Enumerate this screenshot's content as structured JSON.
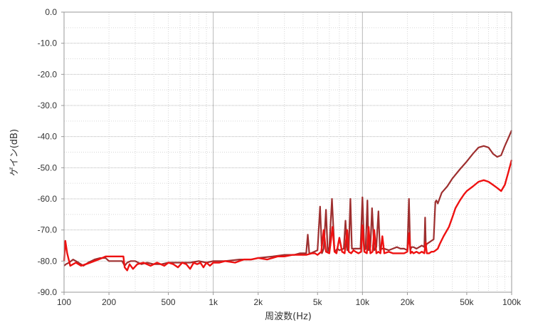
{
  "colors": {
    "series_dark": "#9e2f2f",
    "series_bright": "#ee1111",
    "grid_major": "#b8b8b8",
    "grid_minor": "#d6d6d6",
    "axis": "#999999",
    "text": "#333333"
  },
  "chart_data": {
    "type": "line",
    "title": "",
    "xlabel": "周波数(Hz)",
    "ylabel": "ゲイン(dB)",
    "xscale": "log",
    "xlim": [
      100,
      100000
    ],
    "ylim": [
      -90,
      0
    ],
    "x_tick_values": [
      100,
      200,
      500,
      1000,
      2000,
      5000,
      10000,
      20000,
      50000,
      100000
    ],
    "x_tick_labels": [
      "100",
      "200",
      "500",
      "1k",
      "2k",
      "5k",
      "10k",
      "20k",
      "50k",
      "100k"
    ],
    "y_tick_values": [
      0,
      -10,
      -20,
      -30,
      -40,
      -50,
      -60,
      -70,
      -80,
      -90
    ],
    "y_tick_labels": [
      "0.0",
      "-10.0",
      "-20.0",
      "-30.0",
      "-40.0",
      "-50.0",
      "-60.0",
      "-70.0",
      "-80.0",
      "-90.0"
    ],
    "grid": true,
    "legend": "none",
    "series": [
      {
        "color": "#9e2f2f",
        "x": [
          100,
          103,
          108,
          115,
          125,
          135,
          145,
          160,
          175,
          190,
          200,
          220,
          245,
          255,
          265,
          280,
          300,
          330,
          360,
          400,
          450,
          500,
          600,
          700,
          800,
          900,
          1000,
          1200,
          1500,
          1800,
          2000,
          2500,
          3000,
          3500,
          3800,
          4000,
          4200,
          4300,
          4400,
          4500,
          5000,
          5200,
          5350,
          5500,
          5700,
          5850,
          6000,
          6250,
          6500,
          6650,
          6800,
          7000,
          7500,
          7700,
          7900,
          8100,
          8300,
          8500,
          9000,
          9500,
          9700,
          10000,
          10300,
          10500,
          10800,
          11000,
          11300,
          11600,
          12000,
          12400,
          12800,
          13100,
          13500,
          14000,
          15000,
          16000,
          17000,
          18000,
          19000,
          20000,
          20500,
          20900,
          21300,
          22000,
          23000,
          24000,
          25000,
          26000,
          26300,
          26600,
          27000,
          28000,
          29000,
          30000,
          30800,
          31300,
          32000,
          34000,
          37000,
          40000,
          45000,
          50000,
          55000,
          60000,
          65000,
          70000,
          75000,
          80000,
          85000,
          90000,
          95000,
          100000
        ],
        "y": [
          -81.5,
          -81.0,
          -80.5,
          -79.5,
          -80.5,
          -81.5,
          -80.5,
          -79.5,
          -79.0,
          -79.0,
          -80.0,
          -80.0,
          -80.0,
          -81.5,
          -80.5,
          -80.0,
          -80.0,
          -81.0,
          -80.5,
          -81.0,
          -81.0,
          -80.5,
          -80.5,
          -80.5,
          -80.0,
          -80.5,
          -80.0,
          -80.0,
          -79.5,
          -79.5,
          -79.0,
          -78.5,
          -78.0,
          -78.0,
          -77.5,
          -77.5,
          -77.5,
          -71.5,
          -77.5,
          -77.5,
          -76.5,
          -62.5,
          -77.5,
          -76.0,
          -63.5,
          -77.0,
          -75.5,
          -60.0,
          -77.0,
          -76.5,
          -76.0,
          -76.5,
          -76.0,
          -67.0,
          -76.5,
          -76.0,
          -60.0,
          -76.0,
          -76.0,
          -76.0,
          -76.0,
          -59.5,
          -76.5,
          -76.0,
          -60.5,
          -76.5,
          -75.5,
          -63.0,
          -76.5,
          -75.5,
          -64.0,
          -76.5,
          -76.0,
          -76.0,
          -76.5,
          -76.0,
          -75.5,
          -76.0,
          -76.0,
          -76.5,
          -60.0,
          -76.5,
          -75.5,
          -75.5,
          -76.0,
          -75.5,
          -75.0,
          -75.5,
          -66.0,
          -75.0,
          -74.5,
          -74.0,
          -73.5,
          -73.0,
          -61.0,
          -60.5,
          -61.5,
          -58.0,
          -56.0,
          -53.5,
          -50.5,
          -48.0,
          -45.5,
          -43.5,
          -43.0,
          -43.5,
          -45.5,
          -46.5,
          -46.0,
          -43.0,
          -40.5,
          -38.0
        ]
      },
      {
        "color": "#ee1111",
        "x": [
          100,
          102,
          105,
          110,
          120,
          130,
          140,
          150,
          160,
          170,
          180,
          190,
          200,
          230,
          250,
          255,
          265,
          275,
          290,
          310,
          340,
          380,
          420,
          470,
          500,
          540,
          580,
          620,
          660,
          700,
          740,
          780,
          820,
          860,
          900,
          950,
          1000,
          1100,
          1200,
          1400,
          1600,
          1800,
          2000,
          2300,
          2700,
          3000,
          3400,
          3800,
          4200,
          4600,
          4800,
          5000,
          5300,
          5500,
          5700,
          6000,
          6300,
          6500,
          6700,
          7000,
          7300,
          7600,
          7900,
          8100,
          8400,
          8700,
          9000,
          9400,
          9800,
          10000,
          10300,
          10700,
          11000,
          11300,
          11700,
          12000,
          12400,
          12800,
          13200,
          13600,
          14000,
          15000,
          16000,
          17000,
          18000,
          19000,
          20000,
          20600,
          21000,
          21500,
          22000,
          23000,
          24000,
          25000,
          26000,
          26500,
          27000,
          28000,
          29000,
          30000,
          31000,
          32000,
          33000,
          35000,
          38000,
          40000,
          42000,
          45000,
          48000,
          50000,
          55000,
          60000,
          65000,
          70000,
          75000,
          80000,
          85000,
          90000,
          95000,
          100000
        ],
        "y": [
          -80.0,
          -73.5,
          -77.5,
          -81.5,
          -80.5,
          -81.5,
          -81.0,
          -80.5,
          -80.0,
          -79.5,
          -79.0,
          -78.5,
          -78.5,
          -78.5,
          -78.5,
          -82.0,
          -83.0,
          -81.0,
          -82.5,
          -81.0,
          -80.5,
          -81.5,
          -80.5,
          -81.5,
          -80.5,
          -81.0,
          -82.0,
          -80.5,
          -81.0,
          -82.5,
          -80.5,
          -81.0,
          -80.5,
          -82.0,
          -80.5,
          -81.5,
          -80.5,
          -80.5,
          -80.0,
          -80.5,
          -79.5,
          -79.5,
          -79.0,
          -79.5,
          -78.5,
          -78.5,
          -78.0,
          -78.0,
          -78.0,
          -77.5,
          -77.5,
          -78.0,
          -77.0,
          -70.0,
          -77.0,
          -77.5,
          -69.0,
          -77.0,
          -77.5,
          -72.5,
          -77.0,
          -77.5,
          -70.0,
          -77.0,
          -77.5,
          -76.5,
          -77.0,
          -77.5,
          -77.0,
          -68.5,
          -77.0,
          -77.5,
          -69.0,
          -77.5,
          -77.0,
          -70.0,
          -77.5,
          -77.0,
          -77.5,
          -72.0,
          -77.5,
          -77.0,
          -77.5,
          -77.5,
          -77.5,
          -77.5,
          -77.0,
          -71.0,
          -77.5,
          -77.0,
          -77.5,
          -77.0,
          -77.5,
          -77.0,
          -77.5,
          -74.0,
          -77.5,
          -77.5,
          -77.0,
          -77.0,
          -76.5,
          -76.0,
          -74.5,
          -72.0,
          -69.0,
          -66.0,
          -63.0,
          -60.5,
          -58.5,
          -57.5,
          -56.0,
          -54.5,
          -54.0,
          -54.5,
          -55.5,
          -56.5,
          -57.5,
          -55.5,
          -51.5,
          -47.5
        ]
      }
    ]
  }
}
